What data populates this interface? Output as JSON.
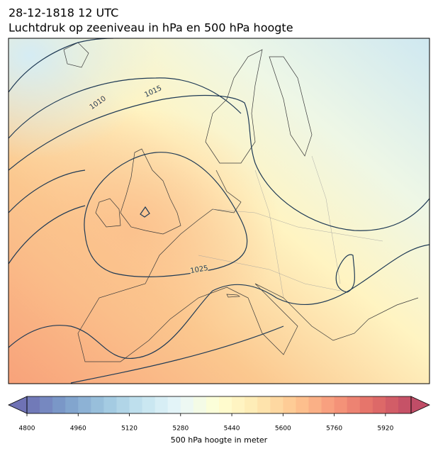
{
  "header": {
    "title": "28-12-1818 12 UTC",
    "subtitle": "Luchtdruk op zeeniveau in hPa en 500 hPa hoogte"
  },
  "map": {
    "contour_labels": [
      "1010",
      "1015",
      "1025"
    ]
  },
  "colorbar": {
    "lim": [
      4800,
      6000
    ],
    "ticks": [
      4800,
      4960,
      5120,
      5280,
      5440,
      5600,
      5760,
      5920
    ],
    "label": "500 hPa hoogte in meter"
  }
}
